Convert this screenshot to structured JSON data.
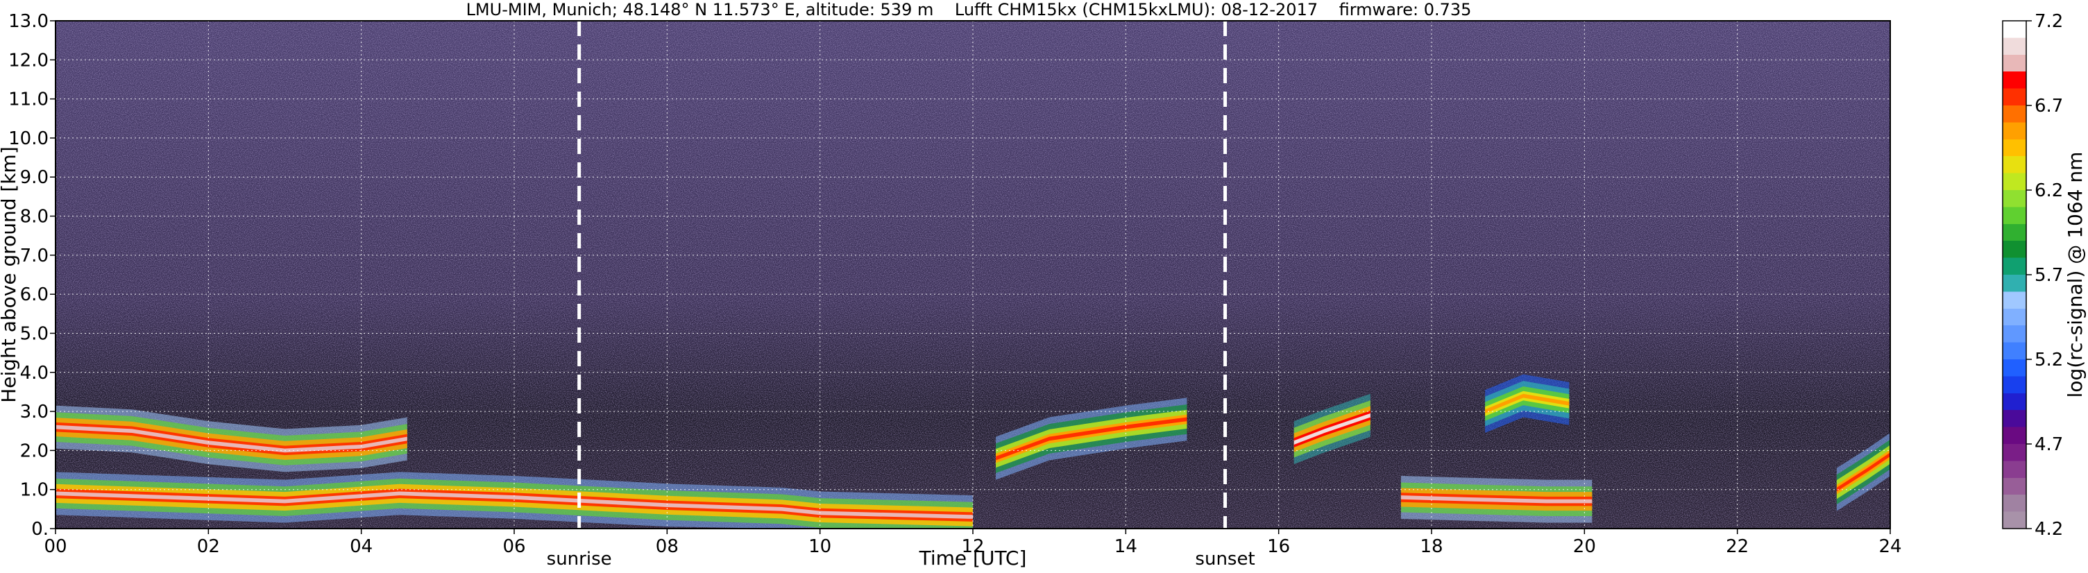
{
  "chart_data": {
    "type": "heatmap",
    "title": "LMU-MIM, Munich; 48.148° N 11.573° E, altitude: 539 m    Lufft CHM15kx (CHM15kxLMU): 08-12-2017    firmware: 0.735",
    "xlabel": "Time [UTC]",
    "ylabel": "Height above ground [km]",
    "xlim": [
      0,
      24
    ],
    "ylim": [
      0,
      13
    ],
    "x_ticks": [
      {
        "value": 0,
        "label": "00"
      },
      {
        "value": 2,
        "label": "02"
      },
      {
        "value": 4,
        "label": "04"
      },
      {
        "value": 6,
        "label": "06"
      },
      {
        "value": 8,
        "label": "08"
      },
      {
        "value": 10,
        "label": "10"
      },
      {
        "value": 12,
        "label": "12"
      },
      {
        "value": 14,
        "label": "14"
      },
      {
        "value": 16,
        "label": "16"
      },
      {
        "value": 18,
        "label": "18"
      },
      {
        "value": 20,
        "label": "20"
      },
      {
        "value": 22,
        "label": "22"
      },
      {
        "value": 24,
        "label": "24"
      }
    ],
    "y_ticks": [
      {
        "value": 0,
        "label": "0."
      },
      {
        "value": 1,
        "label": "1.0"
      },
      {
        "value": 2,
        "label": "2.0"
      },
      {
        "value": 3,
        "label": "3.0"
      },
      {
        "value": 4,
        "label": "4.0"
      },
      {
        "value": 5,
        "label": "5.0"
      },
      {
        "value": 6,
        "label": "6.0"
      },
      {
        "value": 7,
        "label": "7.0"
      },
      {
        "value": 8,
        "label": "8.0"
      },
      {
        "value": 9,
        "label": "9.0"
      },
      {
        "value": 10,
        "label": "10.0"
      },
      {
        "value": 11,
        "label": "11.0"
      },
      {
        "value": 12,
        "label": "12.0"
      },
      {
        "value": 13,
        "label": "13.0"
      }
    ],
    "grid": true,
    "markers": [
      {
        "name": "sunrise",
        "x": 6.85
      },
      {
        "name": "sunset",
        "x": 15.3
      }
    ],
    "colorbar": {
      "label": "log(rc-signal) @ 1064 nm",
      "range": [
        4.2,
        7.2
      ],
      "ticks": [
        {
          "value": 4.2,
          "label": "4.2"
        },
        {
          "value": 4.7,
          "label": "4.7"
        },
        {
          "value": 5.2,
          "label": "5.2"
        },
        {
          "value": 5.7,
          "label": "5.7"
        },
        {
          "value": 6.2,
          "label": "6.2"
        },
        {
          "value": 6.7,
          "label": "6.7"
        },
        {
          "value": 7.2,
          "label": "7.2"
        }
      ],
      "colors": [
        "#a892a9",
        "#a082a2",
        "#985e98",
        "#8a3d90",
        "#7a1e87",
        "#6a0a82",
        "#4a0a9a",
        "#2020d0",
        "#1840ee",
        "#2060ff",
        "#4080ff",
        "#6098ff",
        "#80b0ff",
        "#a0c8ff",
        "#30b0b0",
        "#10a070",
        "#109030",
        "#30b030",
        "#60d030",
        "#90e030",
        "#c0e820",
        "#e8e010",
        "#ffc000",
        "#ffa000",
        "#ff7000",
        "#ff3000",
        "#ff0000",
        "#e8b8b8",
        "#f0dcdc",
        "#ffffff"
      ]
    },
    "layers": [
      {
        "name": "boundary-layer-aerosol",
        "x": [
          0,
          3,
          4.5,
          6,
          8,
          9.5,
          10,
          12
        ],
        "y": [
          0.9,
          0.7,
          0.9,
          0.8,
          0.6,
          0.5,
          0.4,
          0.3
        ],
        "log_signal": 6.9
      },
      {
        "name": "residual-layer",
        "x": [
          0,
          1,
          2,
          3,
          4,
          4.6
        ],
        "y": [
          2.6,
          2.5,
          2.2,
          2.0,
          2.1,
          2.3
        ],
        "log_signal": 7.0
      },
      {
        "name": "afternoon-mixing-layer",
        "x": [
          12.3,
          13,
          14,
          14.8
        ],
        "y": [
          1.8,
          2.3,
          2.6,
          2.8
        ],
        "log_signal": 6.8
      },
      {
        "name": "evening-cloud",
        "x": [
          16.2,
          16.6,
          17.2
        ],
        "y": [
          2.2,
          2.5,
          2.9
        ],
        "log_signal": 7.1
      },
      {
        "name": "nocturnal-layer",
        "x": [
          17.6,
          18.5,
          19.5,
          20.1
        ],
        "y": [
          0.8,
          0.75,
          0.7,
          0.7
        ],
        "log_signal": 7.0
      },
      {
        "name": "elevated-aerosol-19h",
        "x": [
          18.7,
          19.2,
          19.8
        ],
        "y": [
          3.0,
          3.4,
          3.2
        ],
        "log_signal": 6.6
      },
      {
        "name": "late-night-layer",
        "x": [
          23.3,
          23.7,
          24
        ],
        "y": [
          1.0,
          1.5,
          1.9
        ],
        "log_signal": 6.8
      }
    ]
  }
}
